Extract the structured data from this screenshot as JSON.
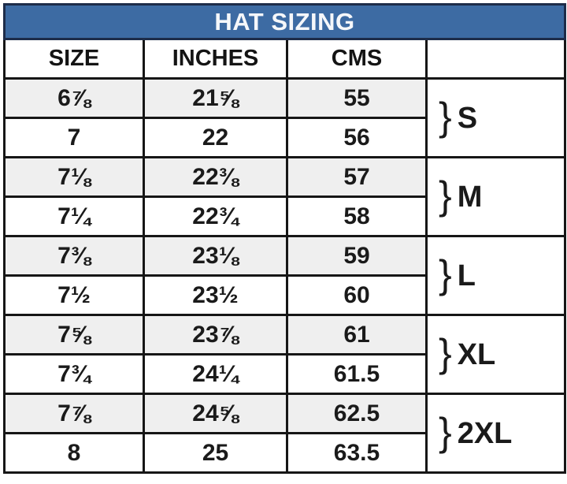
{
  "title": "HAT SIZING",
  "columns": {
    "size": "SIZE",
    "inches": "INCHES",
    "cms": "CMS",
    "group": ""
  },
  "rows": [
    {
      "size": "6⅞",
      "inches": "21⅝",
      "cms": "55"
    },
    {
      "size": "7",
      "inches": "22",
      "cms": "56"
    },
    {
      "size": "7⅛",
      "inches": "22⅜",
      "cms": "57"
    },
    {
      "size": "7¼",
      "inches": "22¾",
      "cms": "58"
    },
    {
      "size": "7⅜",
      "inches": "23⅛",
      "cms": "59"
    },
    {
      "size": "7½",
      "inches": "23½",
      "cms": "60"
    },
    {
      "size": "7⅝",
      "inches": "23⅞",
      "cms": "61"
    },
    {
      "size": "7¾",
      "inches": "24¼",
      "cms": "61.5"
    },
    {
      "size": "7⅞",
      "inches": "24⅝",
      "cms": "62.5"
    },
    {
      "size": "8",
      "inches": "25",
      "cms": "63.5"
    }
  ],
  "groups": [
    {
      "brace": "}",
      "label": "S"
    },
    {
      "brace": "}",
      "label": "M"
    },
    {
      "brace": "}",
      "label": "L"
    },
    {
      "brace": "}",
      "label": "XL"
    },
    {
      "brace": "}",
      "label": "2XL"
    }
  ],
  "colors": {
    "title_bg": "#3d6ba3",
    "title_text": "#f5f7fa",
    "title_border": "#1d2c49",
    "table_border": "#161616",
    "stripe_row_bg": "#efefef",
    "plain_row_bg": "#ffffff",
    "text": "#1a1a1a"
  }
}
